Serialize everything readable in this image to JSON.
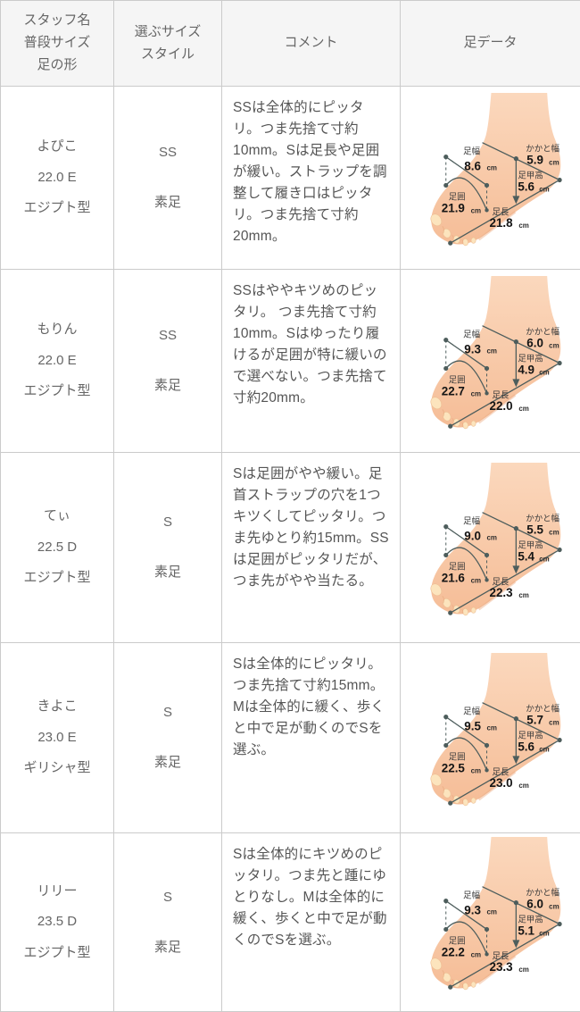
{
  "table": {
    "headers": {
      "staff": "スタッフ名\n普段サイズ\n足の形",
      "size": "選ぶサイズ\nスタイル",
      "comment": "コメント",
      "foot_data": "足データ"
    },
    "foot_diagram_labels": {
      "foot_width": "足幅",
      "heel_width": "かかと幅",
      "instep_height": "足甲高",
      "foot_circumference": "足囲",
      "foot_length": "足長",
      "unit": "cm"
    },
    "rows": [
      {
        "staff": "よぴこ\n22.0 E\nエジプト型",
        "selected_size": "SS",
        "style": "素足",
        "comment": "SSは全体的にピッタリ。つま先捨て寸約10mm。Sは足長や足囲が緩い。ストラップを調整して履き口はピッタリ。つま先捨て寸約20mm。",
        "foot": {
          "foot_width": "8.6",
          "heel_width": "5.9",
          "instep_height": "5.6",
          "foot_circumference": "21.9",
          "foot_length": "21.8"
        }
      },
      {
        "staff": "もりん\n22.0 E\nエジプト型",
        "selected_size": "SS",
        "style": "素足",
        "comment": "SSはややキツめのピッタリ。 つま先捨て寸約10mm。Sはゆったり履けるが足囲が特に緩いので選べない。つま先捨て寸約20mm。",
        "foot": {
          "foot_width": "9.3",
          "heel_width": "6.0",
          "instep_height": "4.9",
          "foot_circumference": "22.7",
          "foot_length": "22.0"
        }
      },
      {
        "staff": "てぃ\n22.5 D\nエジプト型",
        "selected_size": "S",
        "style": "素足",
        "comment": "Sは足囲がやや緩い。足首ストラップの穴を1つキツくしてピッタリ。つま先ゆとり約15mm。SSは足囲がピッタリだが、つま先がやや当たる。",
        "foot": {
          "foot_width": "9.0",
          "heel_width": "5.5",
          "instep_height": "5.4",
          "foot_circumference": "21.6",
          "foot_length": "22.3"
        }
      },
      {
        "staff": "きよこ\n23.0 E\nギリシャ型",
        "selected_size": "S",
        "style": "素足",
        "comment": "Sは全体的にピッタリ。つま先捨て寸約15mm。Mは全体的に緩く、歩くと中で足が動くのでSを選ぶ。",
        "foot": {
          "foot_width": "9.5",
          "heel_width": "5.7",
          "instep_height": "5.6",
          "foot_circumference": "22.5",
          "foot_length": "23.0"
        }
      },
      {
        "staff": "リリー\n23.5 D\nエジプト型",
        "selected_size": "S",
        "style": "素足",
        "comment": "Sは全体的にキツめのピッタリ。つま先と踵にゆとりなし。Mは全体的に緩く、歩くと中で足が動くのでSを選ぶ。",
        "foot": {
          "foot_width": "9.3",
          "heel_width": "6.0",
          "instep_height": "5.1",
          "foot_circumference": "22.2",
          "foot_length": "23.3"
        }
      }
    ]
  }
}
